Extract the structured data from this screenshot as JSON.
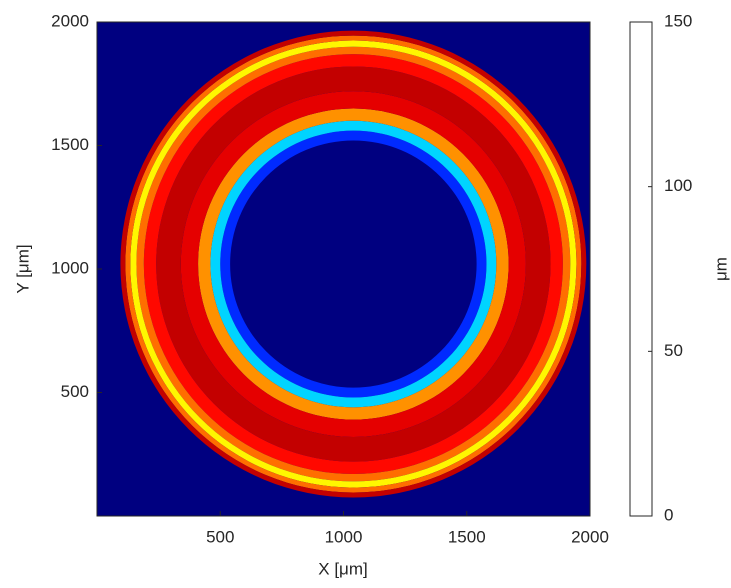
{
  "chart_data": {
    "type": "radial-heatmap",
    "xlabel": "X [μm]",
    "ylabel": "Y [μm]",
    "colorbar_label": "μm",
    "xlim": [
      0,
      2000
    ],
    "xticks": [
      500,
      1000,
      1500,
      2000
    ],
    "ylim": [
      0,
      2000
    ],
    "yticks": [
      500,
      1000,
      1500,
      2000
    ],
    "clim": [
      0,
      150
    ],
    "cticks": [
      0,
      50,
      100,
      150
    ],
    "colormap": "jet",
    "background_value": 0,
    "center": [
      1040,
      1020
    ],
    "radii": [
      0,
      500,
      540,
      580,
      630,
      700,
      800,
      850,
      880,
      905,
      925,
      945
    ],
    "values": [
      0,
      25,
      50,
      110,
      135,
      140,
      130,
      115,
      95,
      115,
      140
    ]
  }
}
